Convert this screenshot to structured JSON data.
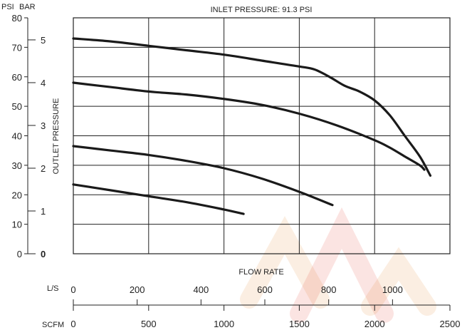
{
  "chart_data": {
    "type": "line",
    "title": "INLET PRESSURE: 91.3 PSI",
    "xlabel": "FLOW RATE",
    "ylabel": "OUTLET PRESSURE",
    "y_left_unit": "PSI",
    "y_right_unit": "BAR",
    "x_primary_unit": "SCFM",
    "x_secondary_unit": "L/S",
    "xlim": [
      0,
      2500
    ],
    "ylim": [
      0,
      80
    ],
    "grid": true,
    "x_ticks": [
      0,
      500,
      1000,
      1500,
      2000,
      2500
    ],
    "y_ticks_psi": [
      0,
      10,
      20,
      30,
      40,
      50,
      60,
      70,
      80
    ],
    "y_ticks_bar": [
      0,
      1,
      2,
      3,
      4,
      5
    ],
    "ls_ticks": [
      0,
      200,
      400,
      600,
      800,
      1000
    ],
    "series": [
      {
        "x": [
          0,
          250,
          500,
          750,
          1000,
          1250,
          1500,
          1600,
          1700,
          1800,
          1900,
          2000,
          2100,
          2200,
          2300,
          2370
        ],
        "y": [
          73,
          72,
          70.5,
          69,
          67.5,
          65.5,
          63.5,
          62.5,
          60,
          57,
          55,
          52,
          47,
          40,
          33,
          26.5
        ]
      },
      {
        "x": [
          0,
          250,
          500,
          750,
          1000,
          1250,
          1500,
          1750,
          2000,
          2100,
          2200,
          2300,
          2330
        ],
        "y": [
          58,
          56.5,
          55,
          54,
          52.5,
          50.5,
          47.5,
          43.5,
          38.5,
          36,
          33,
          30,
          28.5
        ]
      },
      {
        "x": [
          0,
          250,
          500,
          750,
          1000,
          1250,
          1500,
          1720
        ],
        "y": [
          36.5,
          35,
          33.5,
          31.5,
          29,
          25.5,
          21,
          16.5
        ]
      },
      {
        "x": [
          0,
          250,
          500,
          750,
          1000,
          1130
        ],
        "y": [
          23.5,
          21.5,
          19.5,
          17.5,
          15,
          13.5
        ]
      }
    ]
  }
}
